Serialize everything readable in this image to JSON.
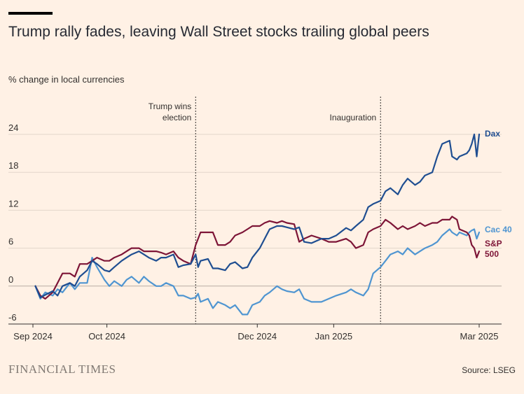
{
  "header": {
    "title": "Trump rally fades, leaving Wall Street stocks trailing global peers",
    "subtitle": "% change in local currencies"
  },
  "footer": {
    "brand": "FINANCIAL TIMES",
    "source": "Source: LSEG"
  },
  "colors": {
    "background": "#FFF1E5",
    "dax": "#1F4E91",
    "cac40": "#4F95D1",
    "sp500": "#7D1537",
    "grid": "#E3D6CB"
  },
  "chart_data": {
    "type": "line",
    "title": "Trump rally fades, leaving Wall Street stocks trailing global peers",
    "ylabel": "% change in local currencies",
    "xlim": [
      "2024-09-01",
      "2025-03-01"
    ],
    "ylim": [
      -6,
      24
    ],
    "yticks": [
      -6,
      0,
      6,
      12,
      18,
      24
    ],
    "xticks": [
      {
        "date": "2024-09-01",
        "label": "Sep 2024"
      },
      {
        "date": "2024-10-01",
        "label": "Oct 2024"
      },
      {
        "date": "2024-12-01",
        "label": "Dec 2024"
      },
      {
        "date": "2025-01-01",
        "label": "Jan 2025"
      },
      {
        "date": "2025-03-01",
        "label": "Mar 2025"
      }
    ],
    "grid": true,
    "legend": "inline labels at right end",
    "annotations": [
      {
        "date": "2024-11-06",
        "lines": [
          "Trump wins",
          "election"
        ]
      },
      {
        "date": "2025-01-20",
        "lines": [
          "Inauguration"
        ]
      }
    ],
    "series": [
      {
        "name": "Dax",
        "label_lines": [
          "Dax"
        ],
        "points": [
          [
            "2024-09-02",
            0.0
          ],
          [
            "2024-09-04",
            -1.8
          ],
          [
            "2024-09-06",
            -1.4
          ],
          [
            "2024-09-09",
            -0.8
          ],
          [
            "2024-09-11",
            -1.5
          ],
          [
            "2024-09-13",
            0.0
          ],
          [
            "2024-09-16",
            0.5
          ],
          [
            "2024-09-18",
            0.0
          ],
          [
            "2024-09-20",
            1.5
          ],
          [
            "2024-09-23",
            2.5
          ],
          [
            "2024-09-25",
            4.0
          ],
          [
            "2024-09-27",
            3.5
          ],
          [
            "2024-09-30",
            2.5
          ],
          [
            "2024-10-02",
            2.3
          ],
          [
            "2024-10-04",
            3.0
          ],
          [
            "2024-10-07",
            4.0
          ],
          [
            "2024-10-09",
            4.5
          ],
          [
            "2024-10-11",
            5.0
          ],
          [
            "2024-10-14",
            5.5
          ],
          [
            "2024-10-16",
            5.0
          ],
          [
            "2024-10-18",
            4.5
          ],
          [
            "2024-10-21",
            4.0
          ],
          [
            "2024-10-23",
            4.5
          ],
          [
            "2024-10-25",
            4.5
          ],
          [
            "2024-10-28",
            5.0
          ],
          [
            "2024-10-30",
            3.0
          ],
          [
            "2024-11-01",
            3.3
          ],
          [
            "2024-11-04",
            3.5
          ],
          [
            "2024-11-06",
            5.0
          ],
          [
            "2024-11-07",
            3.0
          ],
          [
            "2024-11-08",
            4.0
          ],
          [
            "2024-11-11",
            4.3
          ],
          [
            "2024-11-13",
            2.8
          ],
          [
            "2024-11-15",
            2.8
          ],
          [
            "2024-11-18",
            2.5
          ],
          [
            "2024-11-20",
            3.5
          ],
          [
            "2024-11-22",
            3.8
          ],
          [
            "2024-11-25",
            2.8
          ],
          [
            "2024-11-27",
            3.0
          ],
          [
            "2024-11-29",
            4.5
          ],
          [
            "2024-12-02",
            6.0
          ],
          [
            "2024-12-04",
            7.5
          ],
          [
            "2024-12-06",
            9.0
          ],
          [
            "2024-12-09",
            9.5
          ],
          [
            "2024-12-11",
            9.5
          ],
          [
            "2024-12-13",
            9.3
          ],
          [
            "2024-12-16",
            9.0
          ],
          [
            "2024-12-18",
            9.3
          ],
          [
            "2024-12-20",
            7.0
          ],
          [
            "2024-12-23",
            6.8
          ],
          [
            "2024-12-27",
            7.5
          ],
          [
            "2024-12-30",
            7.5
          ],
          [
            "2025-01-02",
            8.0
          ],
          [
            "2025-01-06",
            9.2
          ],
          [
            "2025-01-08",
            8.8
          ],
          [
            "2025-01-10",
            9.5
          ],
          [
            "2025-01-13",
            10.5
          ],
          [
            "2025-01-15",
            12.5
          ],
          [
            "2025-01-17",
            13.0
          ],
          [
            "2025-01-20",
            13.5
          ],
          [
            "2025-01-22",
            15.0
          ],
          [
            "2025-01-24",
            15.5
          ],
          [
            "2025-01-27",
            14.5
          ],
          [
            "2025-01-29",
            16.0
          ],
          [
            "2025-01-31",
            17.0
          ],
          [
            "2025-02-03",
            16.0
          ],
          [
            "2025-02-05",
            16.5
          ],
          [
            "2025-02-07",
            17.5
          ],
          [
            "2025-02-10",
            18.0
          ],
          [
            "2025-02-12",
            20.5
          ],
          [
            "2025-02-14",
            22.5
          ],
          [
            "2025-02-17",
            23.0
          ],
          [
            "2025-02-18",
            20.5
          ],
          [
            "2025-02-20",
            20.0
          ],
          [
            "2025-02-21",
            20.5
          ],
          [
            "2025-02-24",
            21.0
          ],
          [
            "2025-02-25",
            21.5
          ],
          [
            "2025-02-26",
            22.5
          ],
          [
            "2025-02-27",
            24.0
          ],
          [
            "2025-02-28",
            20.5
          ],
          [
            "2025-03-01",
            24.0
          ]
        ]
      },
      {
        "name": "Cac 40",
        "label_lines": [
          "Cac 40"
        ],
        "points": [
          [
            "2024-09-02",
            0.0
          ],
          [
            "2024-09-04",
            -2.0
          ],
          [
            "2024-09-06",
            -1.0
          ],
          [
            "2024-09-09",
            -1.5
          ],
          [
            "2024-09-11",
            -0.5
          ],
          [
            "2024-09-13",
            -1.0
          ],
          [
            "2024-09-16",
            0.5
          ],
          [
            "2024-09-18",
            -0.5
          ],
          [
            "2024-09-20",
            0.5
          ],
          [
            "2024-09-23",
            0.5
          ],
          [
            "2024-09-25",
            4.5
          ],
          [
            "2024-09-27",
            3.0
          ],
          [
            "2024-09-30",
            1.0
          ],
          [
            "2024-10-02",
            0.0
          ],
          [
            "2024-10-04",
            0.8
          ],
          [
            "2024-10-07",
            0.0
          ],
          [
            "2024-10-09",
            1.0
          ],
          [
            "2024-10-11",
            1.5
          ],
          [
            "2024-10-14",
            0.5
          ],
          [
            "2024-10-16",
            1.5
          ],
          [
            "2024-10-18",
            0.8
          ],
          [
            "2024-10-21",
            0.0
          ],
          [
            "2024-10-23",
            0.0
          ],
          [
            "2024-10-25",
            0.5
          ],
          [
            "2024-10-28",
            0.0
          ],
          [
            "2024-10-30",
            -1.5
          ],
          [
            "2024-11-01",
            -1.5
          ],
          [
            "2024-11-04",
            -2.0
          ],
          [
            "2024-11-06",
            -1.8
          ],
          [
            "2024-11-07",
            -1.2
          ],
          [
            "2024-11-08",
            -2.5
          ],
          [
            "2024-11-11",
            -2.0
          ],
          [
            "2024-11-13",
            -3.5
          ],
          [
            "2024-11-15",
            -2.5
          ],
          [
            "2024-11-18",
            -3.0
          ],
          [
            "2024-11-20",
            -3.5
          ],
          [
            "2024-11-22",
            -3.0
          ],
          [
            "2024-11-25",
            -4.5
          ],
          [
            "2024-11-27",
            -4.5
          ],
          [
            "2024-11-29",
            -3.0
          ],
          [
            "2024-12-02",
            -2.5
          ],
          [
            "2024-12-04",
            -1.5
          ],
          [
            "2024-12-06",
            -1.0
          ],
          [
            "2024-12-09",
            0.0
          ],
          [
            "2024-12-11",
            -0.5
          ],
          [
            "2024-12-13",
            -0.8
          ],
          [
            "2024-12-16",
            -1.0
          ],
          [
            "2024-12-18",
            -0.5
          ],
          [
            "2024-12-20",
            -2.0
          ],
          [
            "2024-12-23",
            -2.5
          ],
          [
            "2024-12-27",
            -2.5
          ],
          [
            "2024-12-30",
            -2.0
          ],
          [
            "2025-01-02",
            -1.5
          ],
          [
            "2025-01-06",
            -1.0
          ],
          [
            "2025-01-08",
            -0.5
          ],
          [
            "2025-01-10",
            -1.0
          ],
          [
            "2025-01-13",
            -1.5
          ],
          [
            "2025-01-15",
            -0.5
          ],
          [
            "2025-01-17",
            2.0
          ],
          [
            "2025-01-20",
            3.0
          ],
          [
            "2025-01-22",
            4.0
          ],
          [
            "2025-01-24",
            5.0
          ],
          [
            "2025-01-27",
            5.5
          ],
          [
            "2025-01-29",
            5.0
          ],
          [
            "2025-01-31",
            6.0
          ],
          [
            "2025-02-03",
            5.0
          ],
          [
            "2025-02-05",
            5.5
          ],
          [
            "2025-02-07",
            6.0
          ],
          [
            "2025-02-10",
            6.5
          ],
          [
            "2025-02-12",
            7.0
          ],
          [
            "2025-02-14",
            8.0
          ],
          [
            "2025-02-17",
            9.0
          ],
          [
            "2025-02-18",
            8.5
          ],
          [
            "2025-02-20",
            8.0
          ],
          [
            "2025-02-21",
            8.5
          ],
          [
            "2025-02-24",
            8.0
          ],
          [
            "2025-02-25",
            8.5
          ],
          [
            "2025-02-26",
            8.8
          ],
          [
            "2025-02-27",
            9.0
          ],
          [
            "2025-02-28",
            7.5
          ],
          [
            "2025-03-01",
            8.5
          ]
        ]
      },
      {
        "name": "S&P 500",
        "label_lines": [
          "S&P",
          "500"
        ],
        "points": [
          [
            "2024-09-02",
            0.0
          ],
          [
            "2024-09-04",
            -1.5
          ],
          [
            "2024-09-06",
            -2.0
          ],
          [
            "2024-09-09",
            -1.0
          ],
          [
            "2024-09-11",
            0.5
          ],
          [
            "2024-09-13",
            2.0
          ],
          [
            "2024-09-16",
            2.0
          ],
          [
            "2024-09-18",
            1.5
          ],
          [
            "2024-09-20",
            3.5
          ],
          [
            "2024-09-23",
            3.5
          ],
          [
            "2024-09-25",
            4.0
          ],
          [
            "2024-09-27",
            4.5
          ],
          [
            "2024-09-30",
            4.0
          ],
          [
            "2024-10-02",
            4.0
          ],
          [
            "2024-10-04",
            4.5
          ],
          [
            "2024-10-07",
            5.0
          ],
          [
            "2024-10-09",
            5.5
          ],
          [
            "2024-10-11",
            6.0
          ],
          [
            "2024-10-14",
            6.0
          ],
          [
            "2024-10-16",
            5.5
          ],
          [
            "2024-10-18",
            5.5
          ],
          [
            "2024-10-21",
            5.5
          ],
          [
            "2024-10-23",
            5.3
          ],
          [
            "2024-10-25",
            5.0
          ],
          [
            "2024-10-28",
            5.5
          ],
          [
            "2024-10-30",
            4.5
          ],
          [
            "2024-11-01",
            4.0
          ],
          [
            "2024-11-04",
            3.5
          ],
          [
            "2024-11-06",
            6.5
          ],
          [
            "2024-11-07",
            7.5
          ],
          [
            "2024-11-08",
            8.5
          ],
          [
            "2024-11-11",
            8.5
          ],
          [
            "2024-11-13",
            8.5
          ],
          [
            "2024-11-15",
            6.5
          ],
          [
            "2024-11-18",
            6.5
          ],
          [
            "2024-11-20",
            7.0
          ],
          [
            "2024-11-22",
            8.0
          ],
          [
            "2024-11-25",
            8.5
          ],
          [
            "2024-11-27",
            9.0
          ],
          [
            "2024-11-29",
            9.5
          ],
          [
            "2024-12-02",
            9.5
          ],
          [
            "2024-12-04",
            10.0
          ],
          [
            "2024-12-06",
            10.3
          ],
          [
            "2024-12-09",
            10.0
          ],
          [
            "2024-12-11",
            10.3
          ],
          [
            "2024-12-13",
            10.0
          ],
          [
            "2024-12-16",
            9.8
          ],
          [
            "2024-12-18",
            7.0
          ],
          [
            "2024-12-20",
            7.5
          ],
          [
            "2024-12-23",
            8.0
          ],
          [
            "2024-12-27",
            7.5
          ],
          [
            "2024-12-30",
            7.0
          ],
          [
            "2025-01-02",
            7.0
          ],
          [
            "2025-01-06",
            7.5
          ],
          [
            "2025-01-08",
            7.0
          ],
          [
            "2025-01-10",
            6.0
          ],
          [
            "2025-01-13",
            6.5
          ],
          [
            "2025-01-15",
            8.5
          ],
          [
            "2025-01-17",
            9.0
          ],
          [
            "2025-01-20",
            9.5
          ],
          [
            "2025-01-22",
            10.5
          ],
          [
            "2025-01-24",
            10.0
          ],
          [
            "2025-01-27",
            9.0
          ],
          [
            "2025-01-29",
            9.5
          ],
          [
            "2025-01-31",
            9.0
          ],
          [
            "2025-02-03",
            9.5
          ],
          [
            "2025-02-05",
            10.0
          ],
          [
            "2025-02-07",
            9.5
          ],
          [
            "2025-02-10",
            10.0
          ],
          [
            "2025-02-12",
            10.0
          ],
          [
            "2025-02-14",
            10.5
          ],
          [
            "2025-02-17",
            10.5
          ],
          [
            "2025-02-18",
            11.0
          ],
          [
            "2025-02-20",
            10.5
          ],
          [
            "2025-02-21",
            9.0
          ],
          [
            "2025-02-24",
            8.5
          ],
          [
            "2025-02-25",
            8.0
          ],
          [
            "2025-02-26",
            6.5
          ],
          [
            "2025-02-27",
            6.0
          ],
          [
            "2025-02-28",
            4.5
          ],
          [
            "2025-03-01",
            5.5
          ]
        ]
      }
    ]
  }
}
